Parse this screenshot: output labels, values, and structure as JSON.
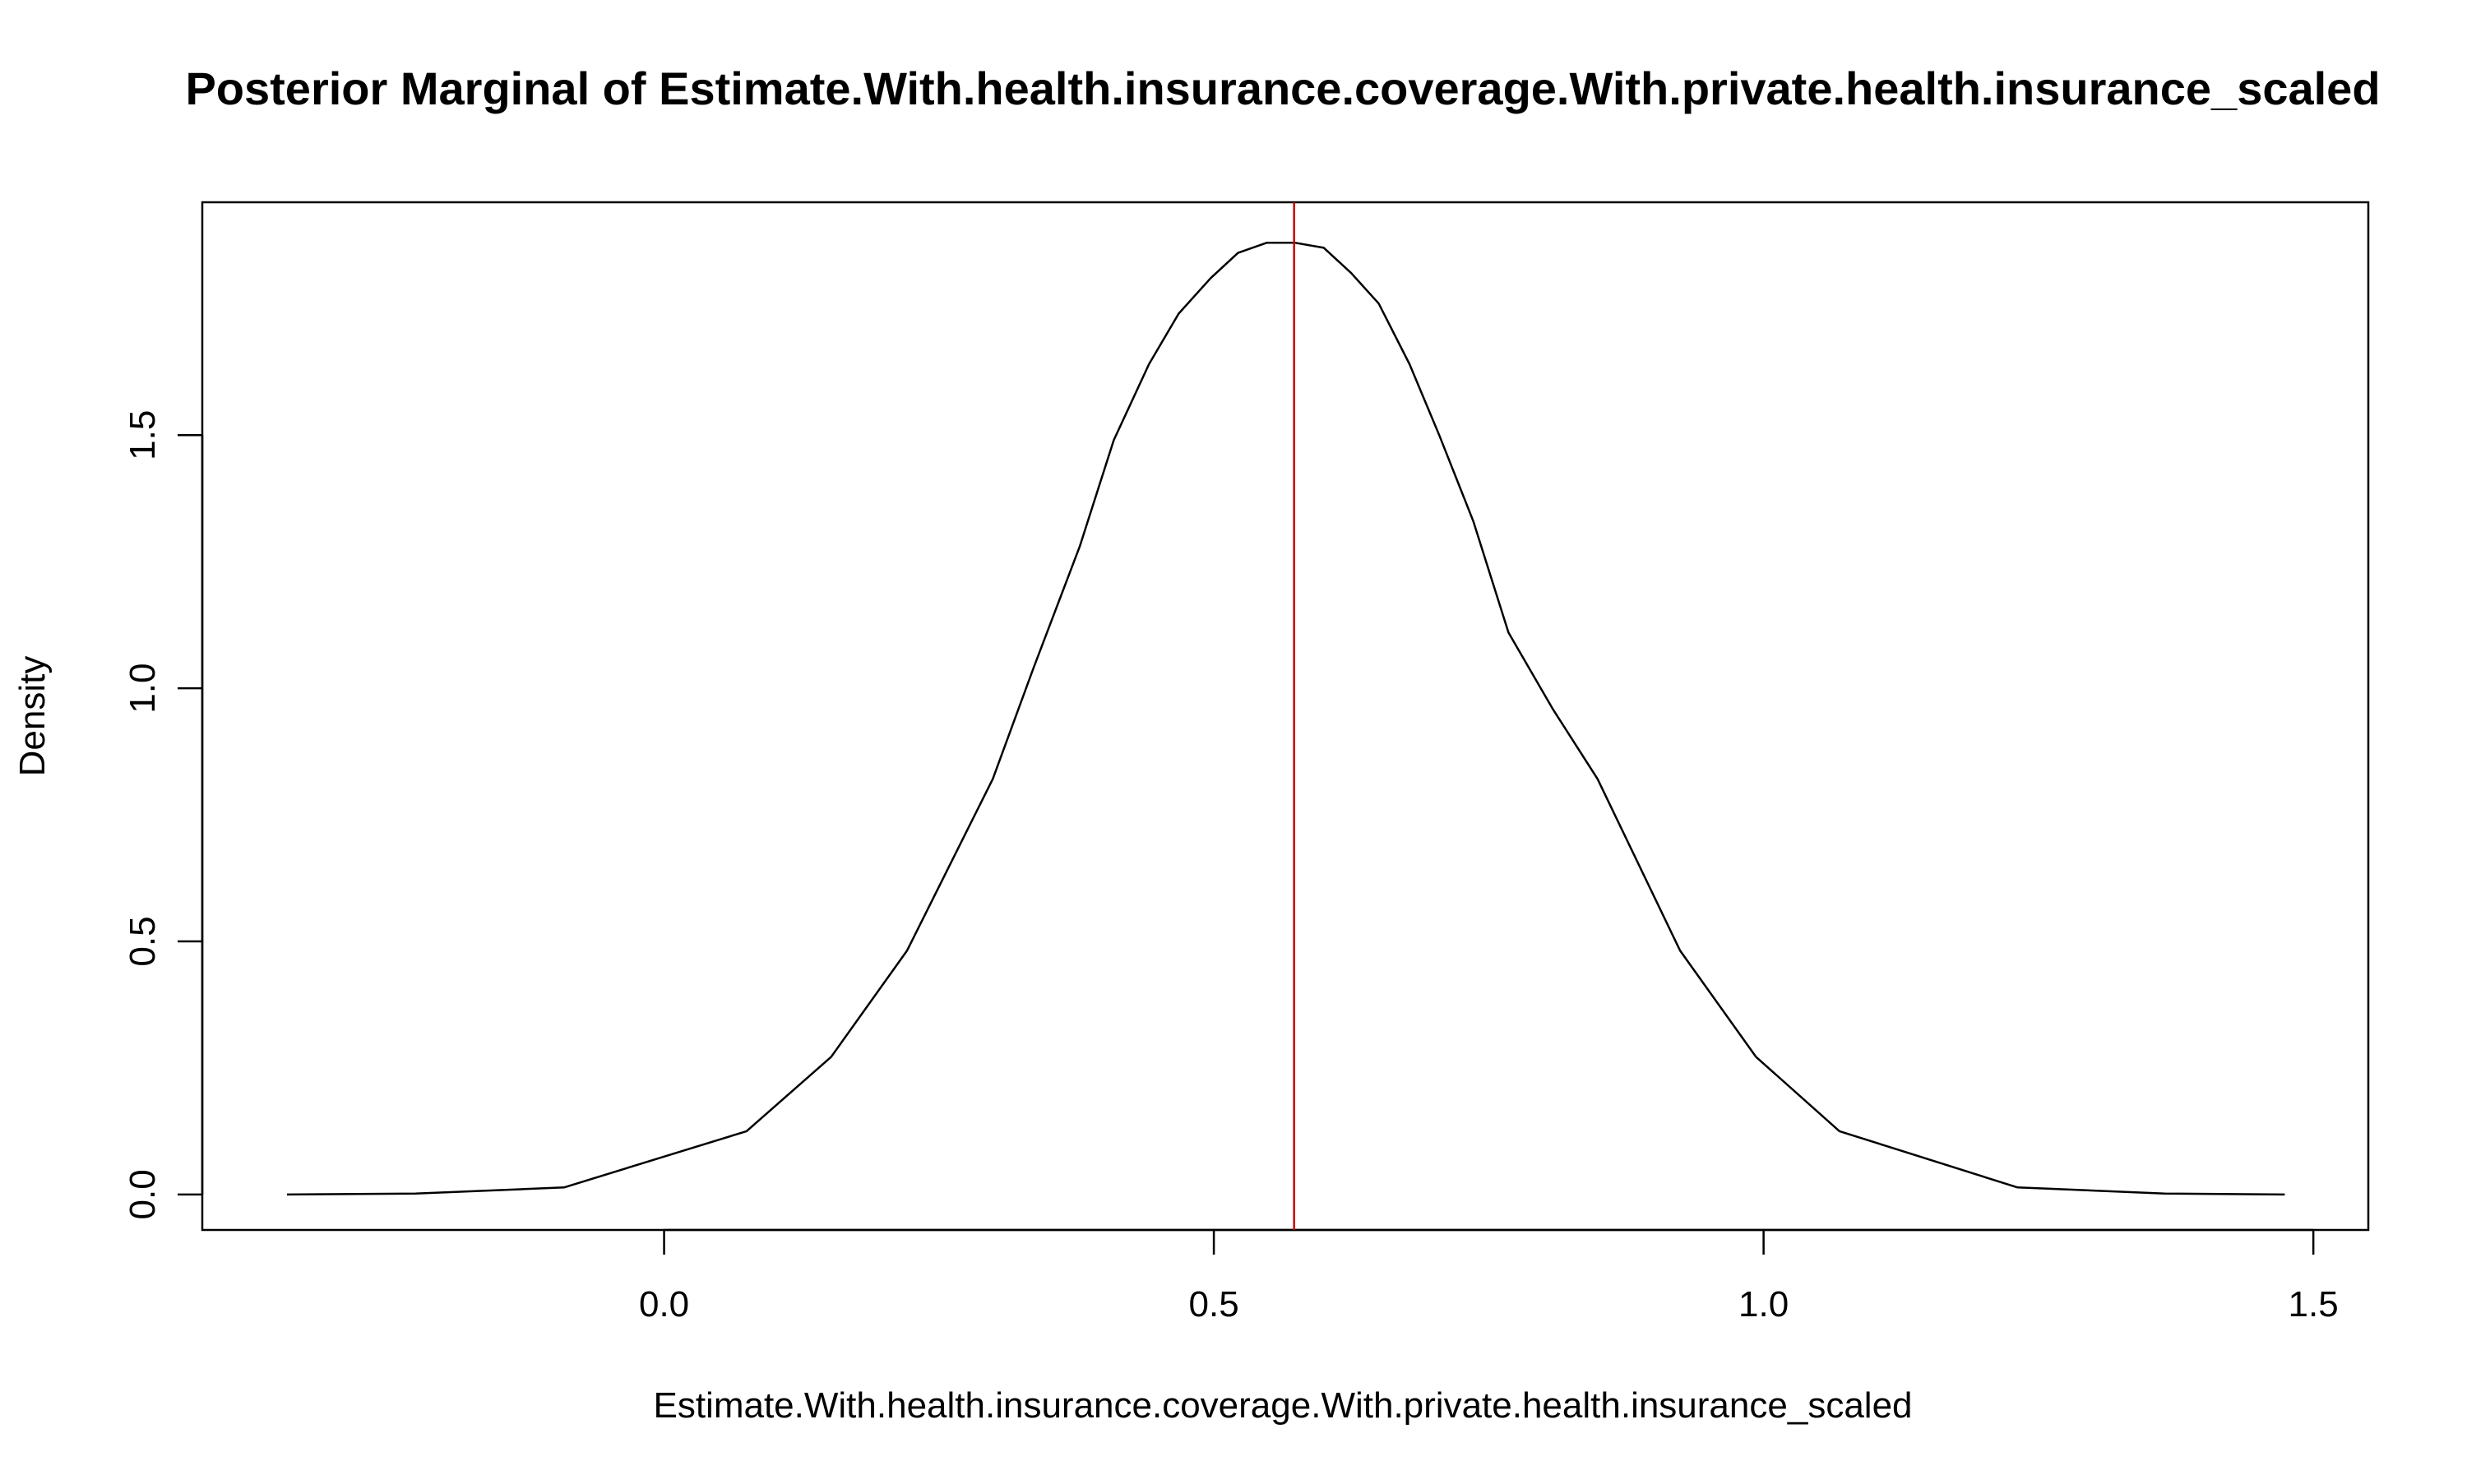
{
  "chart_data": {
    "type": "line",
    "title": "Posterior Marginal of Estimate.With.health.insurance.coverage.With.private.health.insurance_scaled",
    "xlabel": "Estimate.With.health.insurance.coverage.With.private.health.insurance_scaled",
    "ylabel": "Density",
    "xlim": [
      -0.42,
      1.55
    ],
    "ylim": [
      -0.07,
      1.96
    ],
    "x_ticks": [
      0.0,
      0.5,
      1.0,
      1.5
    ],
    "x_tick_labels": [
      "0.0",
      "0.5",
      "1.0",
      "1.5"
    ],
    "y_ticks": [
      0.0,
      0.5,
      1.0,
      1.5
    ],
    "y_tick_labels": [
      "0.0",
      "0.5",
      "1.0",
      "1.5"
    ],
    "grid": false,
    "line_color": "#000000",
    "series": [
      {
        "x": [
          -0.343,
          -0.226,
          -0.091,
          0.075,
          0.152,
          0.221,
          0.299,
          0.336,
          0.378,
          0.409,
          0.441,
          0.468,
          0.497,
          0.522,
          0.548,
          0.574,
          0.6,
          0.625,
          0.65,
          0.678,
          0.705,
          0.736,
          0.768,
          0.808,
          0.849,
          0.924,
          0.993,
          1.069,
          1.231,
          1.365,
          1.474
        ],
        "y": [
          0.0,
          0.002,
          0.014,
          0.125,
          0.272,
          0.482,
          0.821,
          1.04,
          1.28,
          1.49,
          1.64,
          1.74,
          1.81,
          1.86,
          1.88,
          1.88,
          1.87,
          1.82,
          1.76,
          1.64,
          1.5,
          1.33,
          1.11,
          0.96,
          0.821,
          0.482,
          0.272,
          0.125,
          0.014,
          0.002,
          0.0
        ]
      }
    ],
    "reference_lines": [
      {
        "orientation": "vertical",
        "x": 0.573,
        "color": "#cc0000"
      }
    ]
  }
}
